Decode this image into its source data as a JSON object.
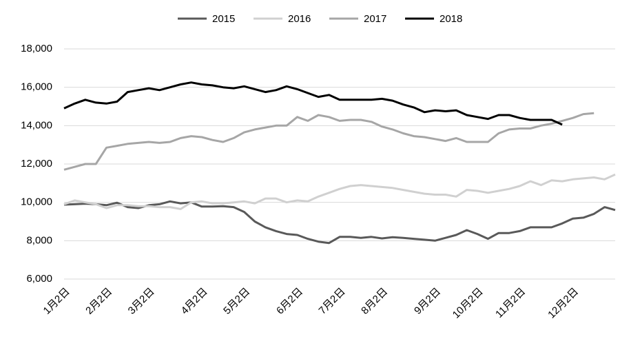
{
  "chart_data": {
    "type": "line",
    "categories": [
      "1月2日",
      null,
      null,
      null,
      "2月2日",
      null,
      null,
      null,
      "3月2日",
      null,
      null,
      null,
      null,
      "4月2日",
      null,
      null,
      null,
      "5月2日",
      null,
      null,
      null,
      null,
      "6月2日",
      null,
      null,
      null,
      "7月2日",
      null,
      null,
      null,
      "8月2日",
      null,
      null,
      null,
      null,
      "9月2日",
      null,
      null,
      null,
      "10月2日",
      null,
      null,
      null,
      "11月2日",
      null,
      null,
      null,
      null,
      "12月2日",
      null,
      null,
      null,
      null
    ],
    "series": [
      {
        "name": "2015",
        "color": "#595959",
        "values": [
          9880,
          9900,
          9930,
          9900,
          9850,
          9980,
          9750,
          9700,
          9850,
          9900,
          10050,
          9950,
          10000,
          9780,
          9780,
          9800,
          9750,
          9500,
          9000,
          8700,
          8500,
          8350,
          8300,
          8100,
          7950,
          7880,
          8200,
          8200,
          8150,
          8200,
          8120,
          8180,
          8150,
          8100,
          8050,
          8000,
          8150,
          8300,
          8550,
          8350,
          8100,
          8400,
          8400,
          8500,
          8700,
          8700,
          8700,
          8900,
          9150,
          9200,
          9400,
          9750,
          9600
        ]
      },
      {
        "name": "2016",
        "color": "#d0d0d0",
        "values": [
          9900,
          10100,
          10000,
          9900,
          9700,
          9850,
          9850,
          9800,
          9800,
          9750,
          9750,
          9650,
          10000,
          10050,
          9950,
          9950,
          10000,
          10050,
          9950,
          10200,
          10200,
          10000,
          10100,
          10050,
          10300,
          10500,
          10700,
          10850,
          10900,
          10850,
          10800,
          10750,
          10650,
          10550,
          10450,
          10400,
          10400,
          10300,
          10650,
          10600,
          10500,
          10600,
          10700,
          10850,
          11100,
          10900,
          11150,
          11100,
          11200,
          11250,
          11300,
          11200,
          11450
        ]
      },
      {
        "name": "2017",
        "color": "#a6a6a6",
        "values": [
          11700,
          11850,
          12000,
          12000,
          12850,
          12950,
          13050,
          13100,
          13150,
          13100,
          13150,
          13350,
          13450,
          13400,
          13250,
          13150,
          13350,
          13650,
          13800,
          13900,
          14000,
          14000,
          14450,
          14250,
          14550,
          14450,
          14250,
          14300,
          14300,
          14200,
          13950,
          13800,
          13600,
          13450,
          13400,
          13300,
          13200,
          13350,
          13150,
          13150,
          13150,
          13600,
          13800,
          13850,
          13850,
          14000,
          14100,
          14250,
          14400,
          14600,
          14650,
          null,
          null
        ]
      },
      {
        "name": "2018",
        "color": "#000000",
        "values": [
          14900,
          15150,
          15350,
          15200,
          15150,
          15250,
          15750,
          15850,
          15950,
          15850,
          16000,
          16150,
          16250,
          16150,
          16100,
          16000,
          15950,
          16050,
          15900,
          15750,
          15850,
          16050,
          15900,
          15700,
          15500,
          15600,
          15350,
          15350,
          15350,
          15350,
          15400,
          15300,
          15100,
          14950,
          14700,
          14800,
          14750,
          14800,
          14550,
          14450,
          14350,
          14550,
          14550,
          14400,
          14300,
          14300,
          14300,
          14050,
          null,
          null,
          null,
          null,
          null
        ]
      }
    ],
    "ylim": [
      6000,
      18000
    ],
    "yticks": [
      {
        "value": 6000,
        "label": "6,000"
      },
      {
        "value": 8000,
        "label": "8,000"
      },
      {
        "value": 10000,
        "label": "10,000"
      },
      {
        "value": 12000,
        "label": "12,000"
      },
      {
        "value": 14000,
        "label": "14,000"
      },
      {
        "value": 16000,
        "label": "16,000"
      },
      {
        "value": 18000,
        "label": "18,000"
      }
    ],
    "grid": true,
    "legend": "top"
  }
}
